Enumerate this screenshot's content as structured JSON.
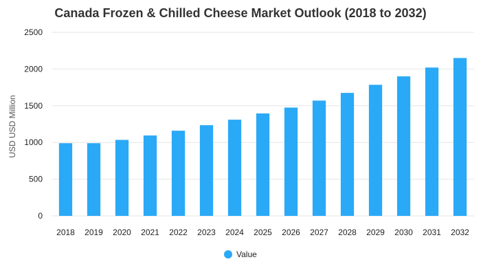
{
  "chart_data": {
    "type": "bar",
    "title": "Canada Frozen & Chilled Cheese Market Outlook (2018 to 2032)",
    "ylabel": "USD USD Million",
    "xlabel": "",
    "categories": [
      "2018",
      "2019",
      "2020",
      "2021",
      "2022",
      "2023",
      "2024",
      "2025",
      "2026",
      "2027",
      "2028",
      "2029",
      "2030",
      "2031",
      "2032"
    ],
    "series": [
      {
        "name": "Value",
        "values": [
          990,
          990,
          1035,
          1095,
          1160,
          1235,
          1310,
          1395,
          1475,
          1570,
          1675,
          1785,
          1900,
          2020,
          2150
        ],
        "color": "#2aa9f7"
      }
    ],
    "ylim": [
      0,
      2500
    ],
    "yticks": [
      0,
      500,
      1000,
      1500,
      2000,
      2500
    ],
    "grid": true,
    "legend_position": "bottom-center"
  }
}
